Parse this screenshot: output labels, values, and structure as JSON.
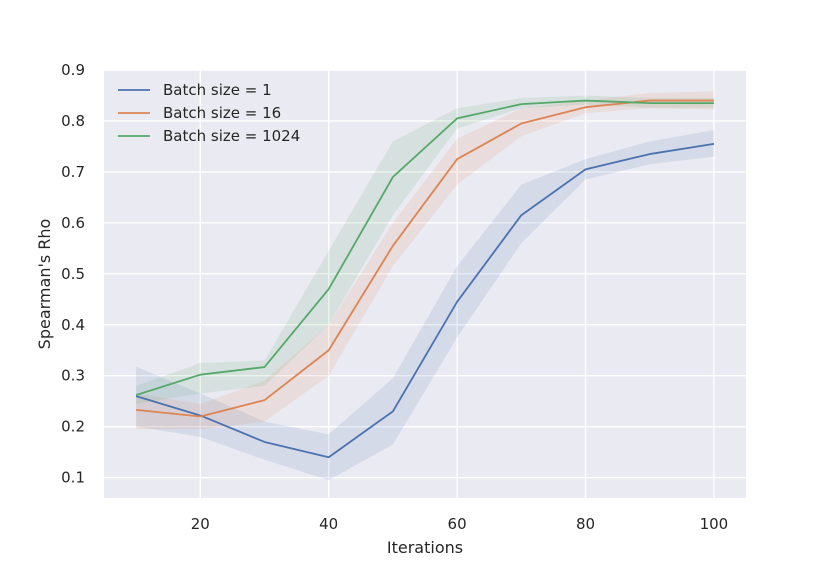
{
  "chart_data": {
    "type": "line",
    "title": "",
    "xlabel": "Iterations",
    "ylabel": "Spearman's Rho",
    "xlim": [
      5,
      105
    ],
    "ylim": [
      0.06,
      0.9
    ],
    "xticks": [
      20,
      40,
      60,
      80,
      100
    ],
    "yticks": [
      0.1,
      0.2,
      0.3,
      0.4,
      0.5,
      0.6,
      0.7,
      0.8,
      0.9
    ],
    "grid": true,
    "legend_position": "top-left",
    "background_color": "#EAEAF2",
    "x": [
      10,
      20,
      30,
      40,
      50,
      60,
      70,
      80,
      90,
      100
    ],
    "series": [
      {
        "name": "Batch size = 1",
        "color": "#4C72B0",
        "values": [
          0.26,
          0.222,
          0.17,
          0.14,
          0.23,
          0.445,
          0.615,
          0.705,
          0.735,
          0.755
        ],
        "lower": [
          0.2,
          0.18,
          0.135,
          0.095,
          0.165,
          0.375,
          0.56,
          0.685,
          0.715,
          0.73
        ],
        "upper": [
          0.318,
          0.265,
          0.21,
          0.185,
          0.295,
          0.515,
          0.675,
          0.725,
          0.76,
          0.782
        ]
      },
      {
        "name": "Batch size = 16",
        "color": "#DD8452",
        "values": [
          0.233,
          0.22,
          0.252,
          0.35,
          0.555,
          0.725,
          0.795,
          0.827,
          0.84,
          0.84
        ],
        "lower": [
          0.195,
          0.195,
          0.21,
          0.3,
          0.515,
          0.675,
          0.77,
          0.815,
          0.825,
          0.822
        ],
        "upper": [
          0.265,
          0.245,
          0.29,
          0.4,
          0.6,
          0.765,
          0.825,
          0.84,
          0.855,
          0.858
        ]
      },
      {
        "name": "Batch size = 1024",
        "color": "#55A868",
        "values": [
          0.262,
          0.302,
          0.317,
          0.47,
          0.69,
          0.805,
          0.833,
          0.84,
          0.835,
          0.835
        ],
        "lower": [
          0.245,
          0.265,
          0.28,
          0.4,
          0.615,
          0.785,
          0.825,
          0.832,
          0.826,
          0.826
        ],
        "upper": [
          0.28,
          0.325,
          0.33,
          0.545,
          0.76,
          0.825,
          0.845,
          0.85,
          0.845,
          0.845
        ]
      }
    ]
  }
}
